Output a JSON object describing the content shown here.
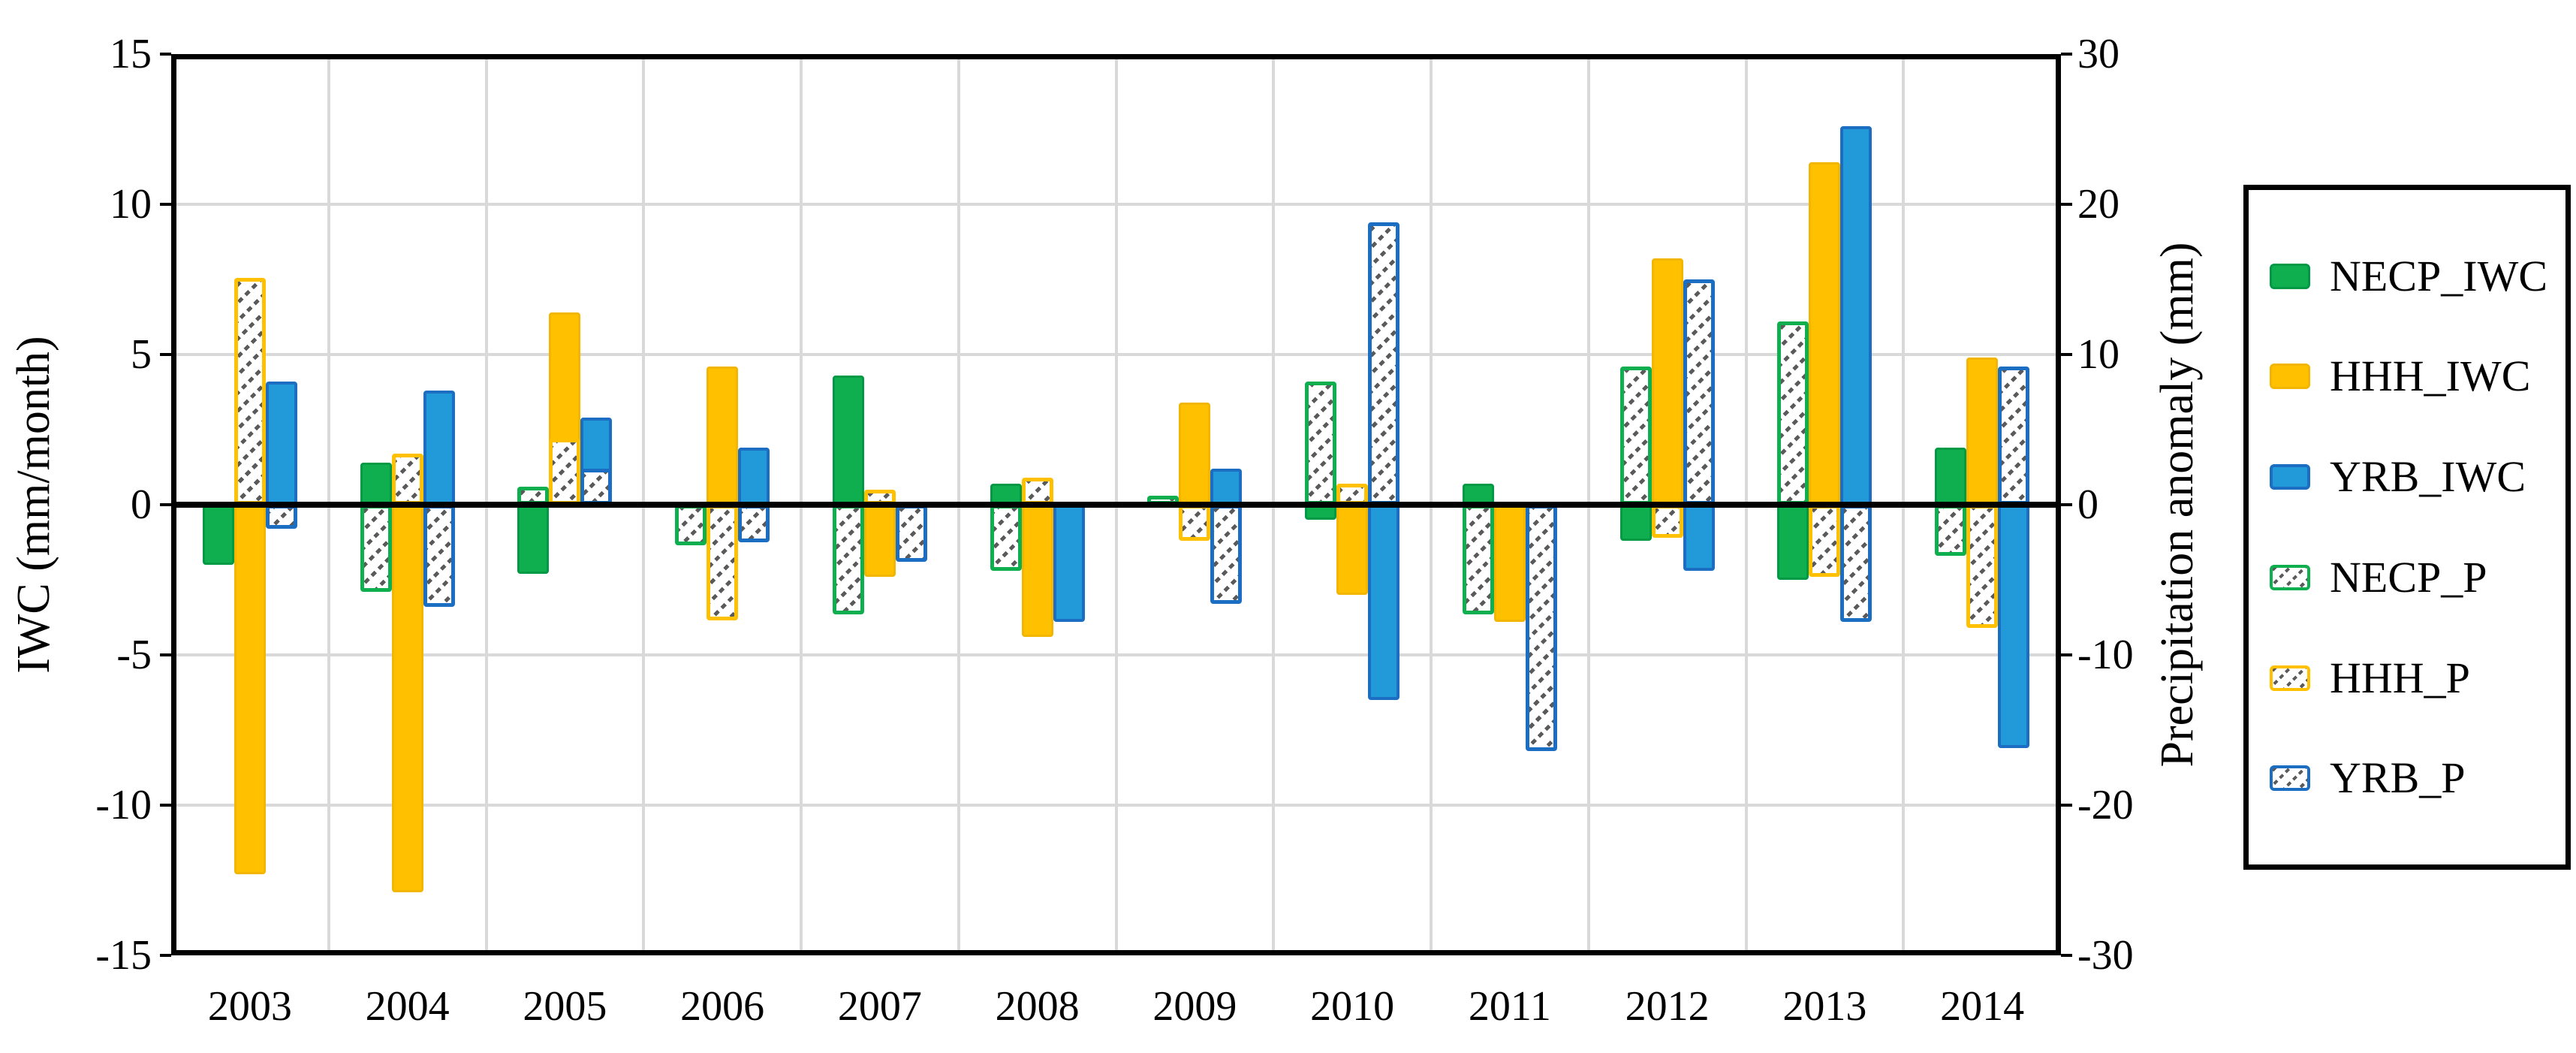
{
  "left_axis": {
    "title": "IWC (mm/month)",
    "min": -15,
    "max": 15,
    "tick_labels": [
      "15",
      "10",
      "5",
      "0",
      "-5",
      "-10",
      "-15"
    ],
    "tick_values": [
      15,
      10,
      5,
      0,
      -5,
      -10,
      -15
    ]
  },
  "right_axis": {
    "title": "Precipitation anomaly (mm)",
    "min": -30,
    "max": 30,
    "tick_labels": [
      "30",
      "20",
      "10",
      "0",
      "-10",
      "-20",
      "-30"
    ],
    "tick_values": [
      30,
      20,
      10,
      0,
      -10,
      -20,
      -30
    ]
  },
  "x_axis": {
    "years": [
      "2003",
      "2004",
      "2005",
      "2006",
      "2007",
      "2008",
      "2009",
      "2010",
      "2011",
      "2012",
      "2013",
      "2014"
    ]
  },
  "colors": {
    "green_fill": "#0fae4f",
    "green_stroke": "#009a44",
    "yellow_fill": "#ffc000",
    "yellow_stroke": "#f2b500",
    "blue_fill": "#2299d9",
    "blue_stroke": "#1b6ec2",
    "hatch_line": "#5a5a5a",
    "gridline": "#d9d9d9",
    "axis": "#000000"
  },
  "legend": [
    {
      "label": "NECP_IWC",
      "style": "solid",
      "color": "green"
    },
    {
      "label": "HHH_IWC",
      "style": "solid",
      "color": "yellow"
    },
    {
      "label": "YRB_IWC",
      "style": "solid",
      "color": "blue"
    },
    {
      "label": "NECP_P",
      "style": "hatched",
      "color": "green"
    },
    {
      "label": "HHH_P",
      "style": "hatched",
      "color": "yellow"
    },
    {
      "label": "YRB_P",
      "style": "hatched",
      "color": "blue"
    }
  ],
  "chart_data": {
    "type": "bar",
    "title": "",
    "categories": [
      "2003",
      "2004",
      "2005",
      "2006",
      "2007",
      "2008",
      "2009",
      "2010",
      "2011",
      "2012",
      "2013",
      "2014"
    ],
    "xlabel": "",
    "ylabel_left": "IWC (mm/month)",
    "ylabel_right": "Precipitation anomaly (mm)",
    "ylim_left": [
      -15,
      15
    ],
    "ylim_right": [
      -30,
      30
    ],
    "grid": true,
    "legend_position": "right",
    "series": [
      {
        "name": "NECP_IWC",
        "axis": "left",
        "style": "solid",
        "color": "green",
        "slot": 0,
        "values": [
          -2.0,
          1.4,
          -2.3,
          -1.1,
          4.3,
          0.7,
          0.2,
          -0.5,
          0.7,
          -1.2,
          -2.5,
          1.9
        ]
      },
      {
        "name": "HHH_IWC",
        "axis": "left",
        "style": "solid",
        "color": "yellow",
        "slot": 1,
        "values": [
          -12.3,
          -12.9,
          6.4,
          4.6,
          -2.4,
          -4.4,
          3.4,
          -3.0,
          -3.9,
          8.2,
          11.4,
          4.9
        ]
      },
      {
        "name": "YRB_IWC",
        "axis": "left",
        "style": "solid",
        "color": "blue",
        "slot": 2,
        "values": [
          4.1,
          3.8,
          2.9,
          1.9,
          -1.6,
          -3.9,
          1.2,
          -6.5,
          -1.0,
          -2.2,
          12.6,
          -8.1
        ]
      },
      {
        "name": "NECP_P",
        "axis": "right",
        "style": "hatched",
        "color": "green",
        "slot": 0,
        "values": [
          0,
          -5.8,
          1.2,
          -2.7,
          -7.3,
          -4.4,
          0.6,
          8.2,
          -7.3,
          9.2,
          12.2,
          -3.4
        ]
      },
      {
        "name": "HHH_P",
        "axis": "right",
        "style": "hatched",
        "color": "yellow",
        "slot": 1,
        "values": [
          15.1,
          3.4,
          4.4,
          -7.7,
          1.0,
          1.8,
          -2.4,
          1.4,
          0,
          -2.2,
          -4.8,
          -8.2
        ]
      },
      {
        "name": "YRB_P",
        "axis": "right",
        "style": "hatched",
        "color": "blue",
        "slot": 2,
        "values": [
          -1.6,
          -6.8,
          2.4,
          -2.5,
          -3.8,
          0,
          -6.6,
          18.8,
          -16.4,
          15.0,
          -7.8,
          9.2
        ]
      }
    ]
  }
}
